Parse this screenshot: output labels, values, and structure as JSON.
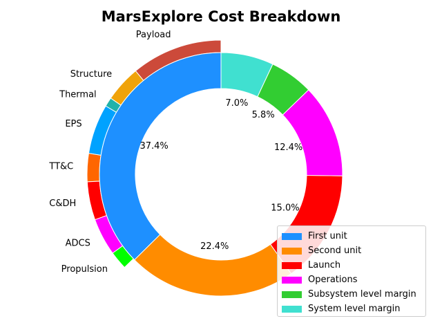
{
  "chart_data": {
    "type": "pie",
    "title": "MarsExplore Cost Breakdown",
    "inner_ring": {
      "categories": [
        "First unit",
        "Second unit",
        "Launch",
        "Operations",
        "Subsystem level margin",
        "System level margin"
      ],
      "values": [
        37.4,
        22.4,
        15.0,
        12.4,
        5.8,
        7.0
      ],
      "labels": [
        "37.4%",
        "22.4%",
        "15.0%",
        "12.4%",
        "5.8%",
        "7.0%"
      ],
      "colors": [
        "#1e90ff",
        "#ff8c00",
        "#ff0000",
        "#ff00ff",
        "#32cd32",
        "#40e0d0"
      ]
    },
    "outer_ring": {
      "categories": [
        "Payload",
        "Structure",
        "Thermal",
        "EPS",
        "TT&C",
        "C&DH",
        "ADCS",
        "Propulsion"
      ],
      "values": [
        11.0,
        4.4,
        1.1,
        6.0,
        3.4,
        4.6,
        4.5,
        2.2
      ],
      "colors": [
        "#cc4a3a",
        "#f0a30a",
        "#20b2aa",
        "#00a2ff",
        "#ff6600",
        "#ff0000",
        "#ff00ff",
        "#00ff00"
      ]
    },
    "legend": {
      "placement": "lower-right",
      "entries": [
        "First unit",
        "Second unit",
        "Launch",
        "Operations",
        "Subsystem level margin",
        "System level margin"
      ]
    }
  }
}
